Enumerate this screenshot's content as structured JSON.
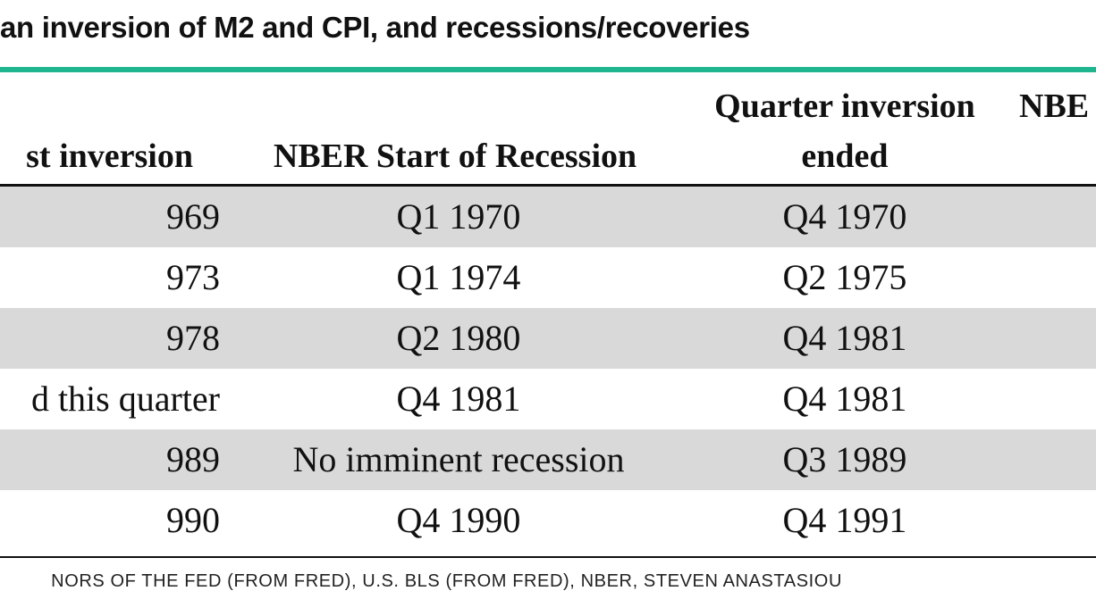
{
  "title": "an inversion of M2 and CPI, and recessions/recoveries",
  "colors": {
    "accent_rule": "#1fb58f",
    "row_shade": "#d9d9d9",
    "rule": "#111111"
  },
  "chart_data": {
    "type": "table",
    "columns": [
      {
        "lines": [
          "st inversion"
        ]
      },
      {
        "lines": [
          "NBER Start of Recession"
        ]
      },
      {
        "lines": [
          "Quarter inversion",
          "ended"
        ]
      },
      {
        "lines": [
          "NBE"
        ]
      }
    ],
    "rows": [
      [
        "969",
        "Q1 1970",
        "Q4 1970"
      ],
      [
        "973",
        "Q1 1974",
        "Q2 1975"
      ],
      [
        "978",
        "Q2 1980",
        "Q4 1981"
      ],
      [
        "d this quarter",
        "Q4 1981",
        "Q4 1981"
      ],
      [
        "989",
        "No imminent recession",
        "Q3 1989"
      ],
      [
        "990",
        "Q4 1990",
        "Q4 1991"
      ]
    ],
    "shaded_rows": [
      0,
      2,
      4
    ]
  },
  "source": "NORS OF THE FED (FROM FRED), U.S. BLS (FROM FRED), NBER, STEVEN ANASTASIOU"
}
